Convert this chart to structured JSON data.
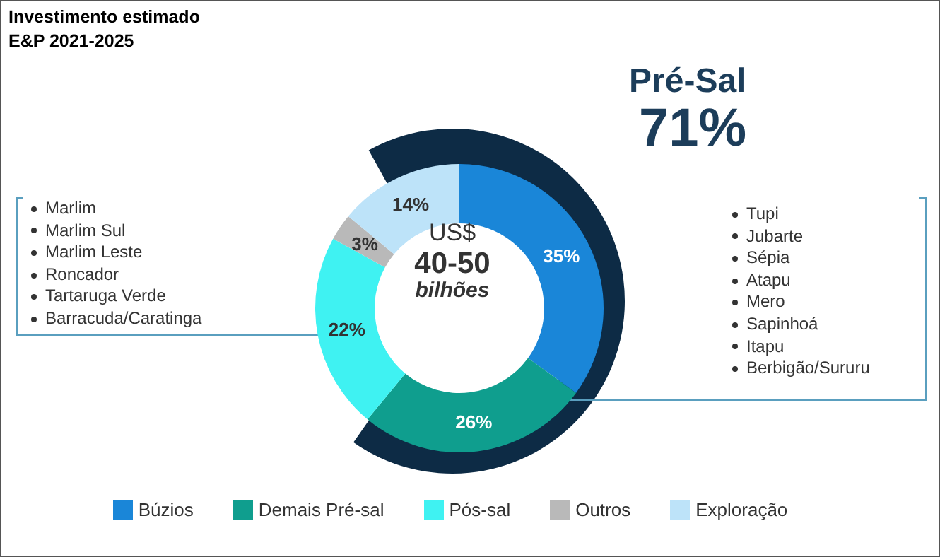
{
  "chart_data": {
    "type": "donut",
    "title": "Investimento estimado",
    "subtitle": "E&P 2021-2025",
    "categories": [
      "Búzios",
      "Demais Pré-sal",
      "Pós-sal",
      "Outros",
      "Exploração"
    ],
    "values": [
      35,
      26,
      22,
      3,
      14
    ],
    "colors": [
      "#1a86d8",
      "#0f9e8e",
      "#3ff2f2",
      "#b9b9b9",
      "#bde3f9"
    ],
    "value_labels": [
      "35%",
      "26%",
      "22%",
      "3%",
      "14%"
    ],
    "legend": "bottom",
    "annotations": [
      "Pré-Sal",
      "71%",
      "US$",
      "40-50",
      "bilhões",
      "Marlim",
      "Marlim Sul",
      "Marlim Leste",
      "Roncador",
      "Tartaruga Verde",
      "Barracuda/Caratinga",
      "Tupi",
      "Jubarte",
      "Sépia",
      "Atapu",
      "Mero",
      "Sapinhoá",
      "Itapu",
      "Berbigão/Sururu"
    ]
  }
}
